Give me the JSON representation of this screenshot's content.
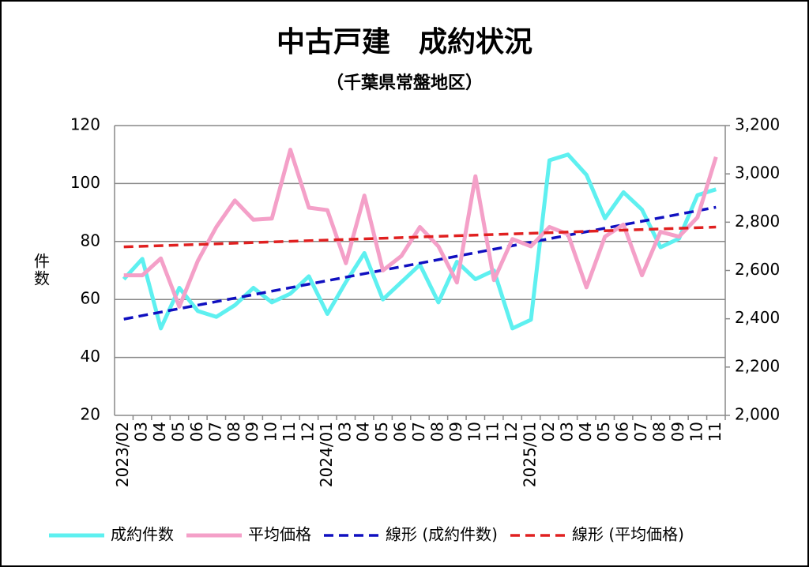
{
  "chart_data": {
    "type": "line",
    "title": "中古戸建　成約状況",
    "subtitle": "（千葉県常盤地区）",
    "y_label": "件数",
    "categories": [
      "2023/02",
      "03",
      "04",
      "05",
      "06",
      "07",
      "08",
      "09",
      "10",
      "11",
      "12",
      "2024/01",
      "03",
      "04",
      "05",
      "06",
      "07",
      "08",
      "09",
      "10",
      "11",
      "12",
      "2025/01",
      "02",
      "03",
      "04",
      "05",
      "06",
      "07",
      "08",
      "09",
      "10",
      "11"
    ],
    "series": [
      {
        "name": "成約件数",
        "color": "#5ef0f0",
        "values": [
          67,
          74,
          50,
          64,
          56,
          54,
          58,
          64,
          59,
          62,
          68,
          55,
          66,
          76,
          60,
          66,
          72,
          59,
          73,
          67,
          70,
          50,
          53,
          108,
          110,
          103,
          88,
          97,
          91,
          78,
          81,
          96,
          98
        ]
      },
      {
        "name": "平均価格",
        "color": "#f4a0c8",
        "axis": "y2",
        "values": [
          2580,
          2580,
          2650,
          2450,
          2640,
          2780,
          2890,
          2810,
          2815,
          3100,
          2860,
          2850,
          2630,
          2910,
          2600,
          2660,
          2780,
          2700,
          2550,
          2990,
          2560,
          2730,
          2700,
          2780,
          2750,
          2530,
          2740,
          2790,
          2580,
          2760,
          2740,
          2820,
          3070
        ]
      }
    ],
    "trendlines": [
      {
        "name": "線形 (成約件数)",
        "color": "#1010c0"
      },
      {
        "name": "線形 (平均価格)",
        "color": "#e02020"
      }
    ],
    "ylim": [
      20,
      120
    ],
    "yticks": [
      20,
      40,
      60,
      80,
      100,
      120
    ],
    "y2lim": [
      2000,
      3200
    ],
    "y2ticks": [
      {
        "value": 2000,
        "label": "2,000"
      },
      {
        "value": 2200,
        "label": "2,200"
      },
      {
        "value": 2400,
        "label": "2,400"
      },
      {
        "value": 2600,
        "label": "2,600"
      },
      {
        "value": 2800,
        "label": "2,800"
      },
      {
        "value": 3000,
        "label": "3,000"
      },
      {
        "value": 3200,
        "label": "3,200"
      }
    ],
    "grid": true,
    "legend": "bottom"
  }
}
